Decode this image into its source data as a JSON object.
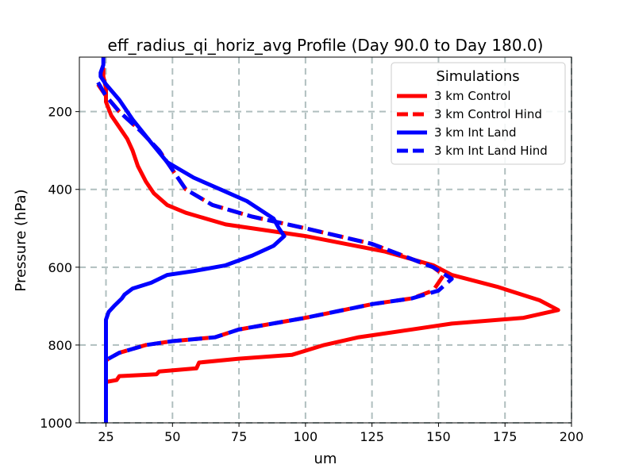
{
  "chart_data": {
    "type": "line",
    "title": "eff_radius_qi_horiz_avg Profile (Day 90.0 to Day 180.0)",
    "xlabel": "um",
    "ylabel": "Pressure (hPa)",
    "xlim": [
      15,
      200
    ],
    "ylim": [
      1000,
      60
    ],
    "y_inverted": true,
    "xticks": [
      25,
      50,
      75,
      100,
      125,
      150,
      175,
      200
    ],
    "yticks": [
      200,
      400,
      600,
      800,
      1000
    ],
    "grid": true,
    "legend": {
      "title": "Simulations",
      "position": "upper right"
    },
    "series": [
      {
        "name": "3 km Control",
        "color": "#ff0000",
        "style": "solid",
        "points": [
          [
            24,
            90
          ],
          [
            24,
            110
          ],
          [
            25,
            140
          ],
          [
            25,
            175
          ],
          [
            27,
            210
          ],
          [
            30,
            240
          ],
          [
            33,
            270
          ],
          [
            35,
            300
          ],
          [
            37,
            340
          ],
          [
            40,
            380
          ],
          [
            43,
            410
          ],
          [
            48,
            440
          ],
          [
            55,
            460
          ],
          [
            70,
            490
          ],
          [
            100,
            520
          ],
          [
            130,
            560
          ],
          [
            148,
            595
          ],
          [
            155,
            620
          ],
          [
            172,
            650
          ],
          [
            188,
            685
          ],
          [
            195,
            710
          ],
          [
            182,
            730
          ],
          [
            155,
            745
          ],
          [
            140,
            760
          ],
          [
            120,
            780
          ],
          [
            107,
            800
          ],
          [
            95,
            825
          ],
          [
            75,
            835
          ],
          [
            60,
            845
          ],
          [
            59,
            860
          ],
          [
            45,
            868
          ],
          [
            44,
            875
          ],
          [
            30,
            880
          ],
          [
            29,
            890
          ],
          [
            25,
            895
          ],
          [
            25,
            900
          ]
        ]
      },
      {
        "name": "3 km Control Hind",
        "color": "#ff0000",
        "style": "dashed",
        "points": [
          [
            22,
            130
          ],
          [
            25,
            160
          ],
          [
            30,
            200
          ],
          [
            38,
            250
          ],
          [
            45,
            300
          ],
          [
            50,
            350
          ],
          [
            55,
            400
          ],
          [
            65,
            440
          ],
          [
            80,
            470
          ],
          [
            100,
            500
          ],
          [
            125,
            540
          ],
          [
            148,
            600
          ],
          [
            152,
            620
          ],
          [
            148,
            660
          ],
          [
            140,
            680
          ],
          [
            125,
            695
          ],
          [
            100,
            730
          ],
          [
            75,
            760
          ],
          [
            66,
            780
          ],
          [
            50,
            790
          ],
          [
            40,
            800
          ],
          [
            30,
            820
          ],
          [
            26,
            835
          ],
          [
            25,
            840
          ]
        ]
      },
      {
        "name": "3 km Int Land",
        "color": "#0000ff",
        "style": "solid",
        "points": [
          [
            24,
            60
          ],
          [
            24,
            80
          ],
          [
            23,
            100
          ],
          [
            23,
            110
          ],
          [
            25,
            130
          ],
          [
            30,
            170
          ],
          [
            35,
            220
          ],
          [
            42,
            280
          ],
          [
            48,
            330
          ],
          [
            58,
            370
          ],
          [
            68,
            400
          ],
          [
            78,
            430
          ],
          [
            88,
            475
          ],
          [
            90,
            500
          ],
          [
            92,
            520
          ],
          [
            88,
            545
          ],
          [
            80,
            570
          ],
          [
            70,
            595
          ],
          [
            58,
            610
          ],
          [
            48,
            620
          ],
          [
            42,
            640
          ],
          [
            35,
            655
          ],
          [
            32,
            670
          ],
          [
            31,
            680
          ],
          [
            28,
            700
          ],
          [
            26,
            715
          ],
          [
            25,
            735
          ],
          [
            25,
            800
          ],
          [
            25,
            1000
          ]
        ]
      },
      {
        "name": "3 km Int Land Hind",
        "color": "#0000ff",
        "style": "dashed",
        "points": [
          [
            22,
            125
          ],
          [
            25,
            160
          ],
          [
            30,
            200
          ],
          [
            38,
            250
          ],
          [
            45,
            300
          ],
          [
            50,
            350
          ],
          [
            55,
            400
          ],
          [
            65,
            440
          ],
          [
            80,
            470
          ],
          [
            100,
            500
          ],
          [
            125,
            540
          ],
          [
            148,
            600
          ],
          [
            155,
            630
          ],
          [
            150,
            660
          ],
          [
            140,
            680
          ],
          [
            125,
            695
          ],
          [
            100,
            730
          ],
          [
            75,
            760
          ],
          [
            66,
            780
          ],
          [
            50,
            790
          ],
          [
            40,
            800
          ],
          [
            30,
            820
          ],
          [
            26,
            835
          ],
          [
            25,
            840
          ]
        ]
      }
    ]
  }
}
